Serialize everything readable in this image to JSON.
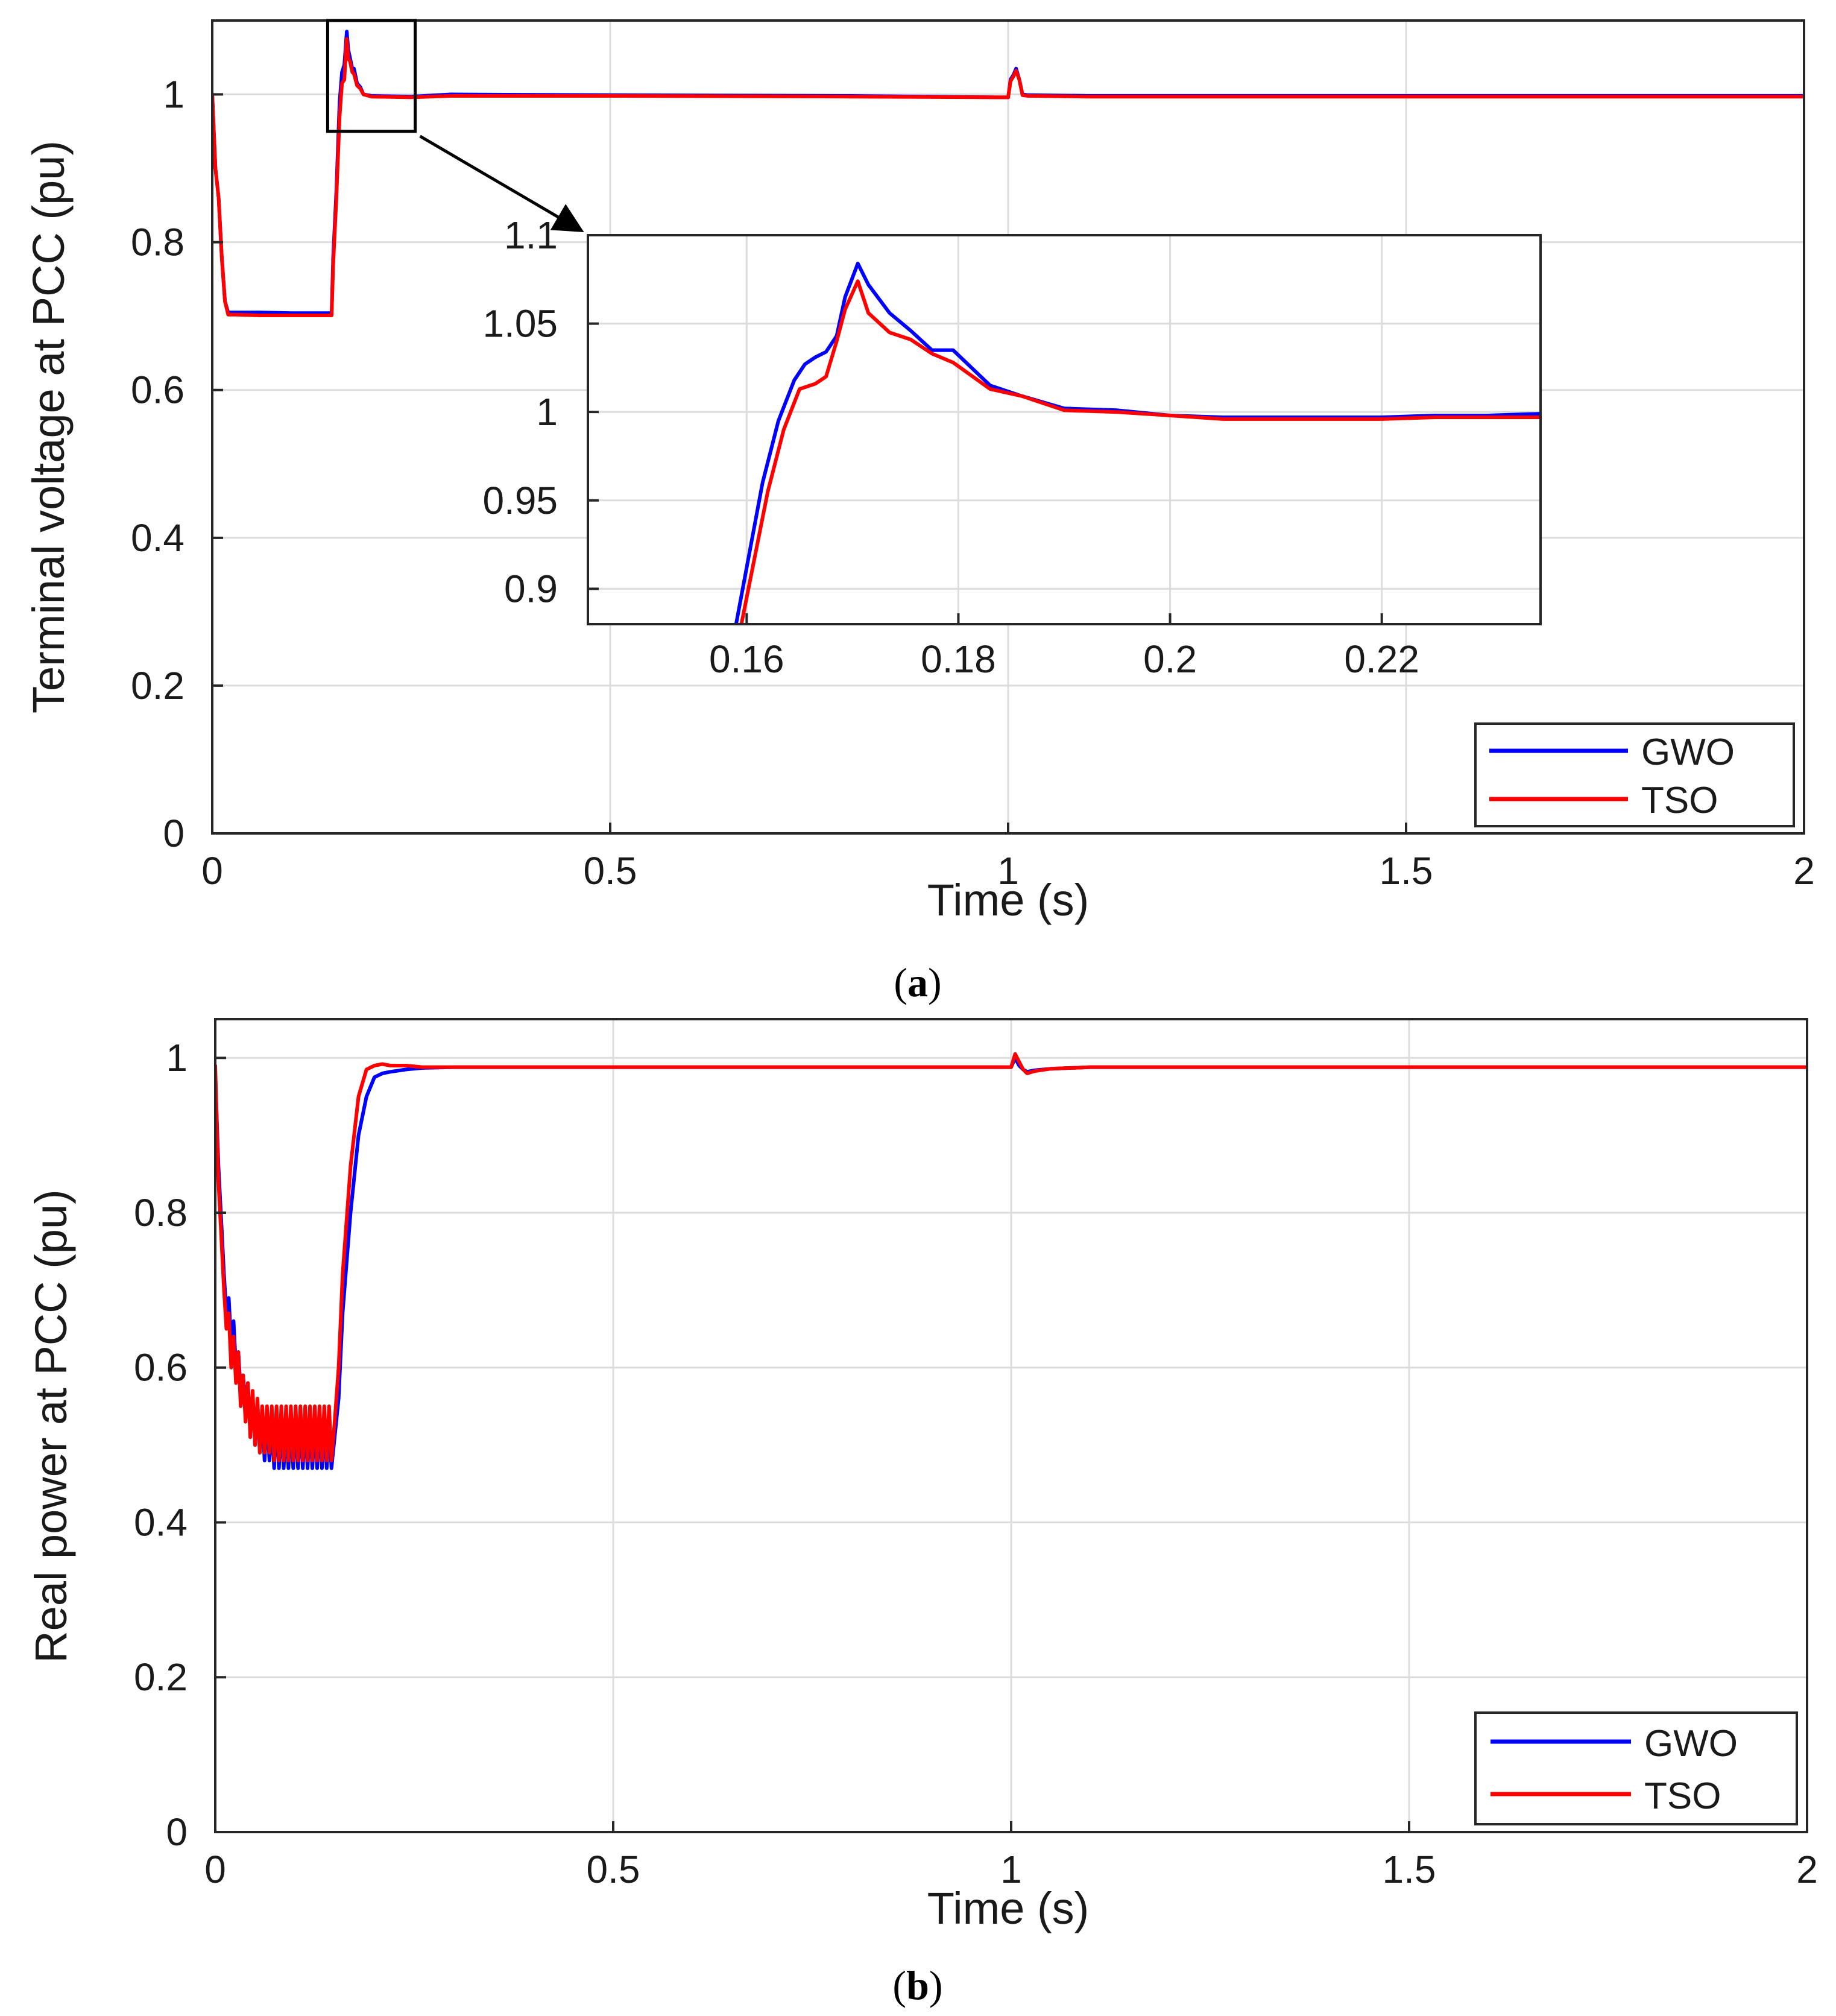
{
  "chart_data": [
    {
      "type": "line",
      "panel": "a",
      "caption": "(a)",
      "caption_letter": "a",
      "xlabel": "Time (s)",
      "ylabel": "Terminal voltage at PCC (pu)",
      "xlim": [
        0,
        2
      ],
      "ylim": [
        0,
        1.1
      ],
      "xticks": [
        0,
        0.5,
        1,
        1.5,
        2
      ],
      "xtick_labels": [
        "0",
        "0.5",
        "1",
        "1.5",
        "2"
      ],
      "yticks": [
        0,
        0.2,
        0.4,
        0.6,
        0.8,
        1
      ],
      "ytick_labels": [
        "0",
        "0.2",
        "0.4",
        "0.6",
        "0.8",
        "1"
      ],
      "grid": true,
      "legend": "bottom-right",
      "series": [
        {
          "name": "GWO",
          "color": "#0000ff",
          "x": [
            0,
            0.004,
            0.008,
            0.012,
            0.016,
            0.02,
            0.025,
            0.03,
            0.06,
            0.1,
            0.13,
            0.15,
            0.152,
            0.156,
            0.16,
            0.163,
            0.166,
            0.168,
            0.169,
            0.171,
            0.173,
            0.176,
            0.178,
            0.182,
            0.186,
            0.19,
            0.2,
            0.25,
            0.3,
            0.5,
            0.8,
            0.99,
            1.0,
            1.003,
            1.007,
            1.01,
            1.014,
            1.018,
            1.025,
            1.1,
            1.5,
            2.0
          ],
          "y": [
            1.0,
            0.9,
            0.86,
            0.78,
            0.72,
            0.705,
            0.705,
            0.705,
            0.705,
            0.704,
            0.704,
            0.704,
            0.78,
            0.87,
            0.99,
            1.03,
            1.04,
            1.07,
            1.085,
            1.06,
            1.05,
            1.035,
            1.035,
            1.015,
            1.01,
            1.0,
            0.998,
            0.997,
            1.0,
            0.999,
            0.998,
            0.996,
            0.996,
            1.02,
            1.027,
            1.035,
            1.02,
            1.0,
            0.999,
            0.998,
            0.998,
            0.998
          ]
        },
        {
          "name": "TSO",
          "color": "#ff0000",
          "x": [
            0,
            0.004,
            0.008,
            0.012,
            0.016,
            0.02,
            0.025,
            0.03,
            0.06,
            0.1,
            0.13,
            0.15,
            0.152,
            0.156,
            0.16,
            0.163,
            0.166,
            0.168,
            0.169,
            0.171,
            0.173,
            0.176,
            0.178,
            0.182,
            0.186,
            0.19,
            0.2,
            0.25,
            0.3,
            0.5,
            0.8,
            0.99,
            1.0,
            1.003,
            1.007,
            1.01,
            1.014,
            1.018,
            1.025,
            1.1,
            1.5,
            2.0
          ],
          "y": [
            1.0,
            0.9,
            0.86,
            0.78,
            0.72,
            0.702,
            0.702,
            0.702,
            0.701,
            0.701,
            0.701,
            0.701,
            0.77,
            0.86,
            0.97,
            1.015,
            1.02,
            1.06,
            1.075,
            1.048,
            1.045,
            1.03,
            1.028,
            1.012,
            1.008,
            1.0,
            0.997,
            0.996,
            0.998,
            0.998,
            0.997,
            0.996,
            0.996,
            1.018,
            1.025,
            1.032,
            1.02,
            0.999,
            0.998,
            0.997,
            0.997,
            0.997
          ]
        }
      ],
      "annotations": [
        {
          "type": "zoom-box",
          "x_range": [
            0.145,
            0.255
          ],
          "y_range": [
            0.95,
            1.1
          ]
        }
      ],
      "inset": {
        "type": "line",
        "xlim": [
          0.145,
          0.235
        ],
        "ylim": [
          0.88,
          1.1
        ],
        "xticks": [
          0.16,
          0.18,
          0.2,
          0.22
        ],
        "xtick_labels": [
          "0.16",
          "0.18",
          "0.2",
          "0.22"
        ],
        "yticks": [
          0.9,
          0.95,
          1,
          1.05,
          1.1
        ],
        "ytick_labels": [
          "0.9",
          "0.95",
          "1",
          "1.05",
          "1.1"
        ],
        "grid": true,
        "series": [
          {
            "name": "GWO",
            "color": "#0000ff",
            "x": [
              0.159,
              0.1615,
              0.163,
              0.1645,
              0.1655,
              0.1665,
              0.1675,
              0.1685,
              0.1693,
              0.1705,
              0.1715,
              0.1735,
              0.1755,
              0.1775,
              0.1795,
              0.183,
              0.186,
              0.19,
              0.195,
              0.2,
              0.205,
              0.215,
              0.22,
              0.225,
              0.23,
              0.235
            ],
            "y": [
              0.88,
              0.96,
              0.995,
              1.018,
              1.027,
              1.031,
              1.034,
              1.043,
              1.065,
              1.084,
              1.072,
              1.056,
              1.046,
              1.035,
              1.035,
              1.015,
              1.009,
              1.002,
              1.001,
              0.998,
              0.997,
              0.997,
              0.997,
              0.998,
              0.998,
              0.999
            ]
          },
          {
            "name": "TSO",
            "color": "#ff0000",
            "x": [
              0.1595,
              0.162,
              0.1635,
              0.165,
              0.1665,
              0.1675,
              0.1685,
              0.1693,
              0.1705,
              0.1715,
              0.1735,
              0.1755,
              0.1775,
              0.1795,
              0.183,
              0.186,
              0.19,
              0.195,
              0.2,
              0.205,
              0.215,
              0.22,
              0.225,
              0.23,
              0.235
            ],
            "y": [
              0.88,
              0.955,
              0.99,
              1.013,
              1.016,
              1.02,
              1.04,
              1.058,
              1.074,
              1.056,
              1.045,
              1.041,
              1.033,
              1.028,
              1.013,
              1.009,
              1.001,
              1.0,
              0.998,
              0.996,
              0.996,
              0.996,
              0.997,
              0.997,
              0.997
            ]
          }
        ]
      }
    },
    {
      "type": "line",
      "panel": "b",
      "caption": "(b)",
      "caption_letter": "b",
      "xlabel": "Time (s)",
      "ylabel": "Real power at PCC (pu)",
      "xlim": [
        0,
        2
      ],
      "ylim": [
        0,
        1.05
      ],
      "xticks": [
        0,
        0.5,
        1,
        1.5,
        2
      ],
      "xtick_labels": [
        "0",
        "0.5",
        "1",
        "1.5",
        "2"
      ],
      "yticks": [
        0,
        0.2,
        0.4,
        0.6,
        0.8,
        1
      ],
      "ytick_labels": [
        "0",
        "0.2",
        "0.4",
        "0.6",
        "0.8",
        "1"
      ],
      "grid": true,
      "legend": "bottom-right",
      "series": [
        {
          "name": "GWO",
          "color": "#0000ff",
          "x": [
            0,
            0.004,
            0.008,
            0.011,
            0.014,
            0.017,
            0.02,
            0.023,
            0.026,
            0.029,
            0.032,
            0.035,
            0.038,
            0.041,
            0.044,
            0.047,
            0.05,
            0.053,
            0.056,
            0.059,
            0.062,
            0.065,
            0.068,
            0.071,
            0.074,
            0.077,
            0.08,
            0.083,
            0.086,
            0.089,
            0.092,
            0.095,
            0.098,
            0.101,
            0.104,
            0.107,
            0.11,
            0.113,
            0.116,
            0.119,
            0.122,
            0.125,
            0.128,
            0.131,
            0.134,
            0.137,
            0.14,
            0.143,
            0.146,
            0.15,
            0.155,
            0.16,
            0.17,
            0.18,
            0.19,
            0.2,
            0.21,
            0.22,
            0.24,
            0.26,
            0.3,
            0.5,
            0.8,
            1.0,
            1.005,
            1.01,
            1.015,
            1.02,
            1.03,
            1.05,
            1.1,
            1.5,
            2.0
          ],
          "y": [
            0.98,
            0.86,
            0.78,
            0.72,
            0.67,
            0.69,
            0.63,
            0.66,
            0.6,
            0.62,
            0.57,
            0.59,
            0.55,
            0.58,
            0.52,
            0.56,
            0.5,
            0.55,
            0.49,
            0.54,
            0.48,
            0.54,
            0.48,
            0.53,
            0.47,
            0.54,
            0.47,
            0.53,
            0.47,
            0.53,
            0.47,
            0.53,
            0.47,
            0.53,
            0.47,
            0.53,
            0.47,
            0.53,
            0.47,
            0.53,
            0.47,
            0.53,
            0.47,
            0.53,
            0.47,
            0.53,
            0.47,
            0.53,
            0.47,
            0.51,
            0.56,
            0.67,
            0.8,
            0.9,
            0.95,
            0.975,
            0.98,
            0.982,
            0.985,
            0.987,
            0.988,
            0.988,
            0.988,
            0.988,
            1.0,
            0.99,
            0.985,
            0.982,
            0.984,
            0.986,
            0.988,
            0.988,
            0.988
          ]
        },
        {
          "name": "TSO",
          "color": "#ff0000",
          "x": [
            0,
            0.004,
            0.008,
            0.011,
            0.014,
            0.017,
            0.02,
            0.023,
            0.026,
            0.029,
            0.032,
            0.035,
            0.038,
            0.041,
            0.044,
            0.047,
            0.05,
            0.053,
            0.056,
            0.059,
            0.062,
            0.065,
            0.068,
            0.071,
            0.074,
            0.077,
            0.08,
            0.083,
            0.086,
            0.089,
            0.092,
            0.095,
            0.098,
            0.101,
            0.104,
            0.107,
            0.11,
            0.113,
            0.116,
            0.119,
            0.122,
            0.125,
            0.128,
            0.131,
            0.134,
            0.137,
            0.14,
            0.143,
            0.146,
            0.15,
            0.155,
            0.16,
            0.17,
            0.18,
            0.19,
            0.2,
            0.21,
            0.22,
            0.24,
            0.26,
            0.3,
            0.5,
            0.8,
            1.0,
            1.005,
            1.01,
            1.015,
            1.02,
            1.03,
            1.05,
            1.1,
            1.5,
            2.0
          ],
          "y": [
            0.99,
            0.84,
            0.76,
            0.7,
            0.65,
            0.67,
            0.6,
            0.64,
            0.58,
            0.62,
            0.55,
            0.59,
            0.53,
            0.58,
            0.51,
            0.57,
            0.5,
            0.56,
            0.49,
            0.55,
            0.49,
            0.55,
            0.49,
            0.55,
            0.48,
            0.55,
            0.48,
            0.55,
            0.48,
            0.55,
            0.48,
            0.55,
            0.48,
            0.55,
            0.48,
            0.55,
            0.48,
            0.55,
            0.48,
            0.55,
            0.48,
            0.55,
            0.48,
            0.55,
            0.48,
            0.55,
            0.48,
            0.55,
            0.48,
            0.53,
            0.6,
            0.72,
            0.86,
            0.95,
            0.985,
            0.99,
            0.992,
            0.99,
            0.99,
            0.988,
            0.988,
            0.988,
            0.988,
            0.988,
            1.005,
            0.995,
            0.985,
            0.98,
            0.983,
            0.986,
            0.988,
            0.988,
            0.988
          ]
        }
      ]
    }
  ]
}
